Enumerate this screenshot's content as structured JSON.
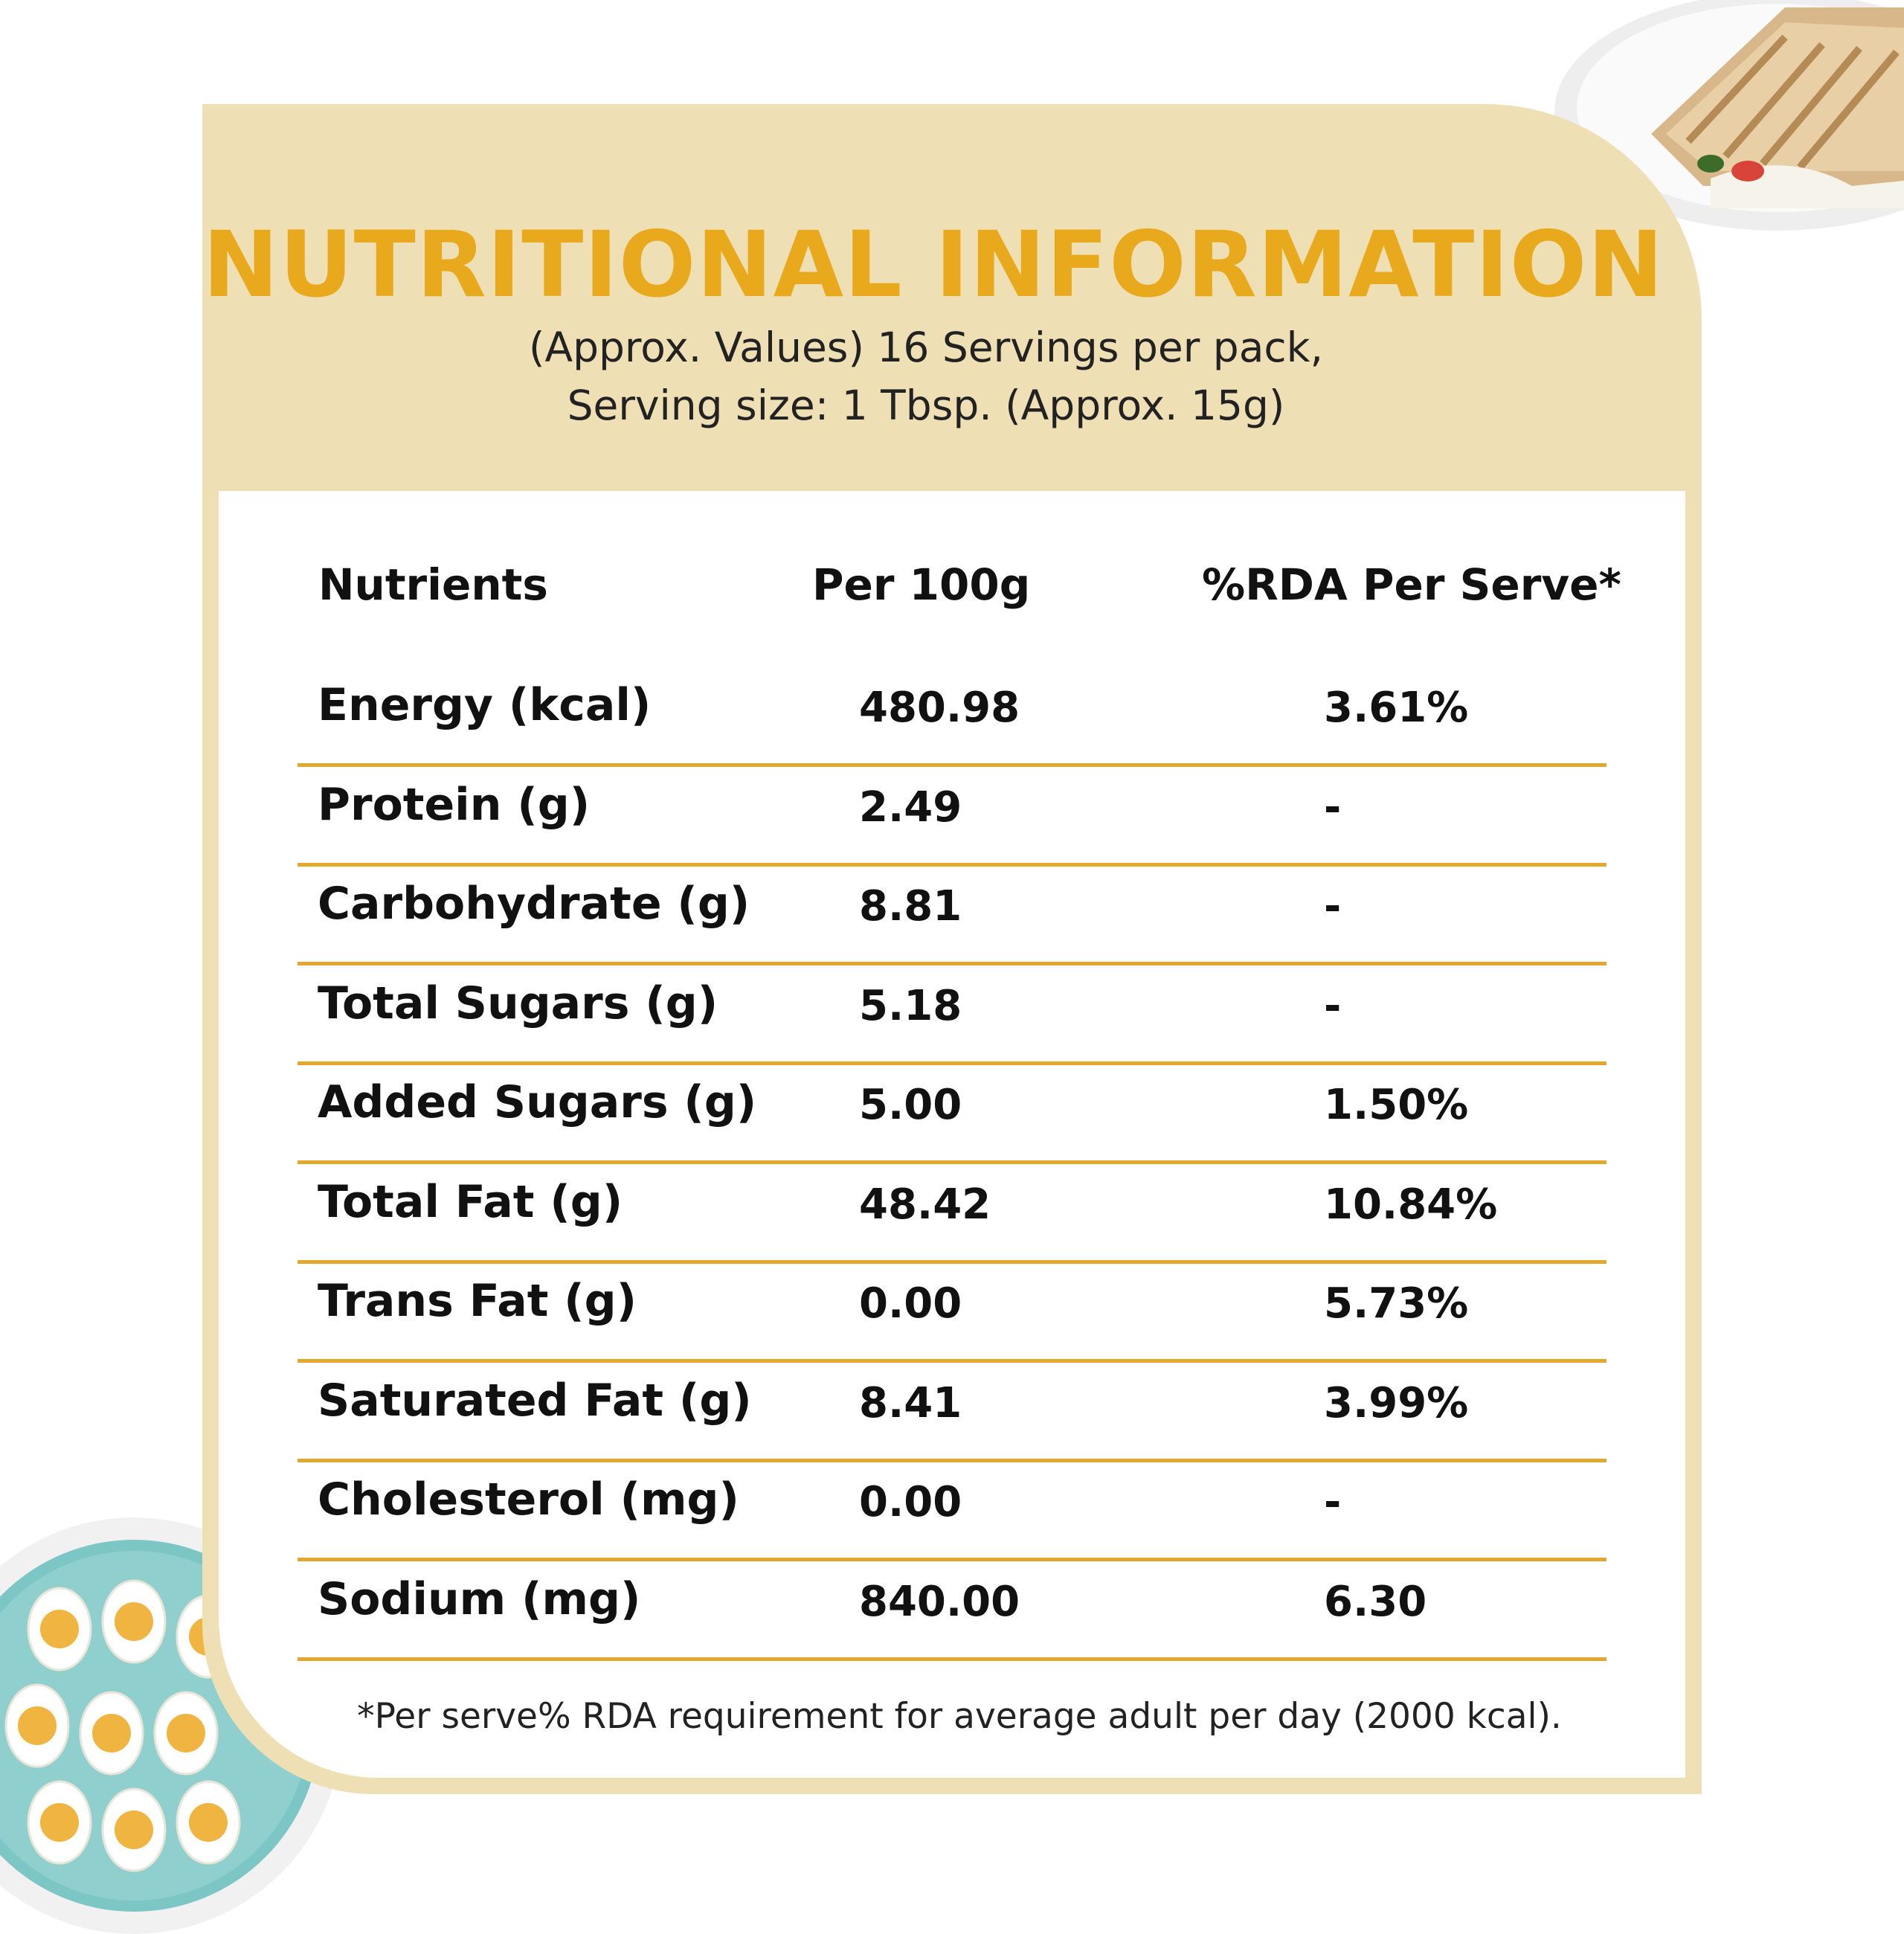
{
  "header": {
    "title": "NUTRITIONAL INFORMATION",
    "subtitle_line1": "(Approx. Values) 16 Servings per pack,",
    "subtitle_line2": "Serving size: 1 Tbsp. (Approx. 15g)"
  },
  "table": {
    "columns": [
      "Nutrients",
      "Per 100g",
      "%RDA Per Serve*"
    ],
    "rows": [
      {
        "nutrient": "Energy (kcal)",
        "per100g": "480.98",
        "rda": "3.61%"
      },
      {
        "nutrient": "Protein (g)",
        "per100g": "2.49",
        "rda": "-"
      },
      {
        "nutrient": "Carbohydrate (g)",
        "per100g": "8.81",
        "rda": "-"
      },
      {
        "nutrient": "Total Sugars (g)",
        "per100g": "5.18",
        "rda": "-"
      },
      {
        "nutrient": "Added Sugars (g)",
        "per100g": "5.00",
        "rda": "1.50%"
      },
      {
        "nutrient": "Total Fat (g)",
        "per100g": "48.42",
        "rda": "10.84%"
      },
      {
        "nutrient": "Trans Fat (g)",
        "per100g": "0.00",
        "rda": "5.73%"
      },
      {
        "nutrient": "Saturated Fat (g)",
        "per100g": "8.41",
        "rda": "3.99%"
      },
      {
        "nutrient": "Cholesterol (mg)",
        "per100g": "0.00",
        "rda": "-"
      },
      {
        "nutrient": "Sodium (mg)",
        "per100g": "840.00",
        "rda": "6.30"
      }
    ]
  },
  "footnote": "*Per serve% RDA requirement for average adult per day (2000 kcal).",
  "colors": {
    "accent": "#e8a91c",
    "card": "#efdfb4",
    "rule": "#e3a72d"
  },
  "images": [
    "sandwich-plate",
    "deviled-eggs-plate"
  ]
}
